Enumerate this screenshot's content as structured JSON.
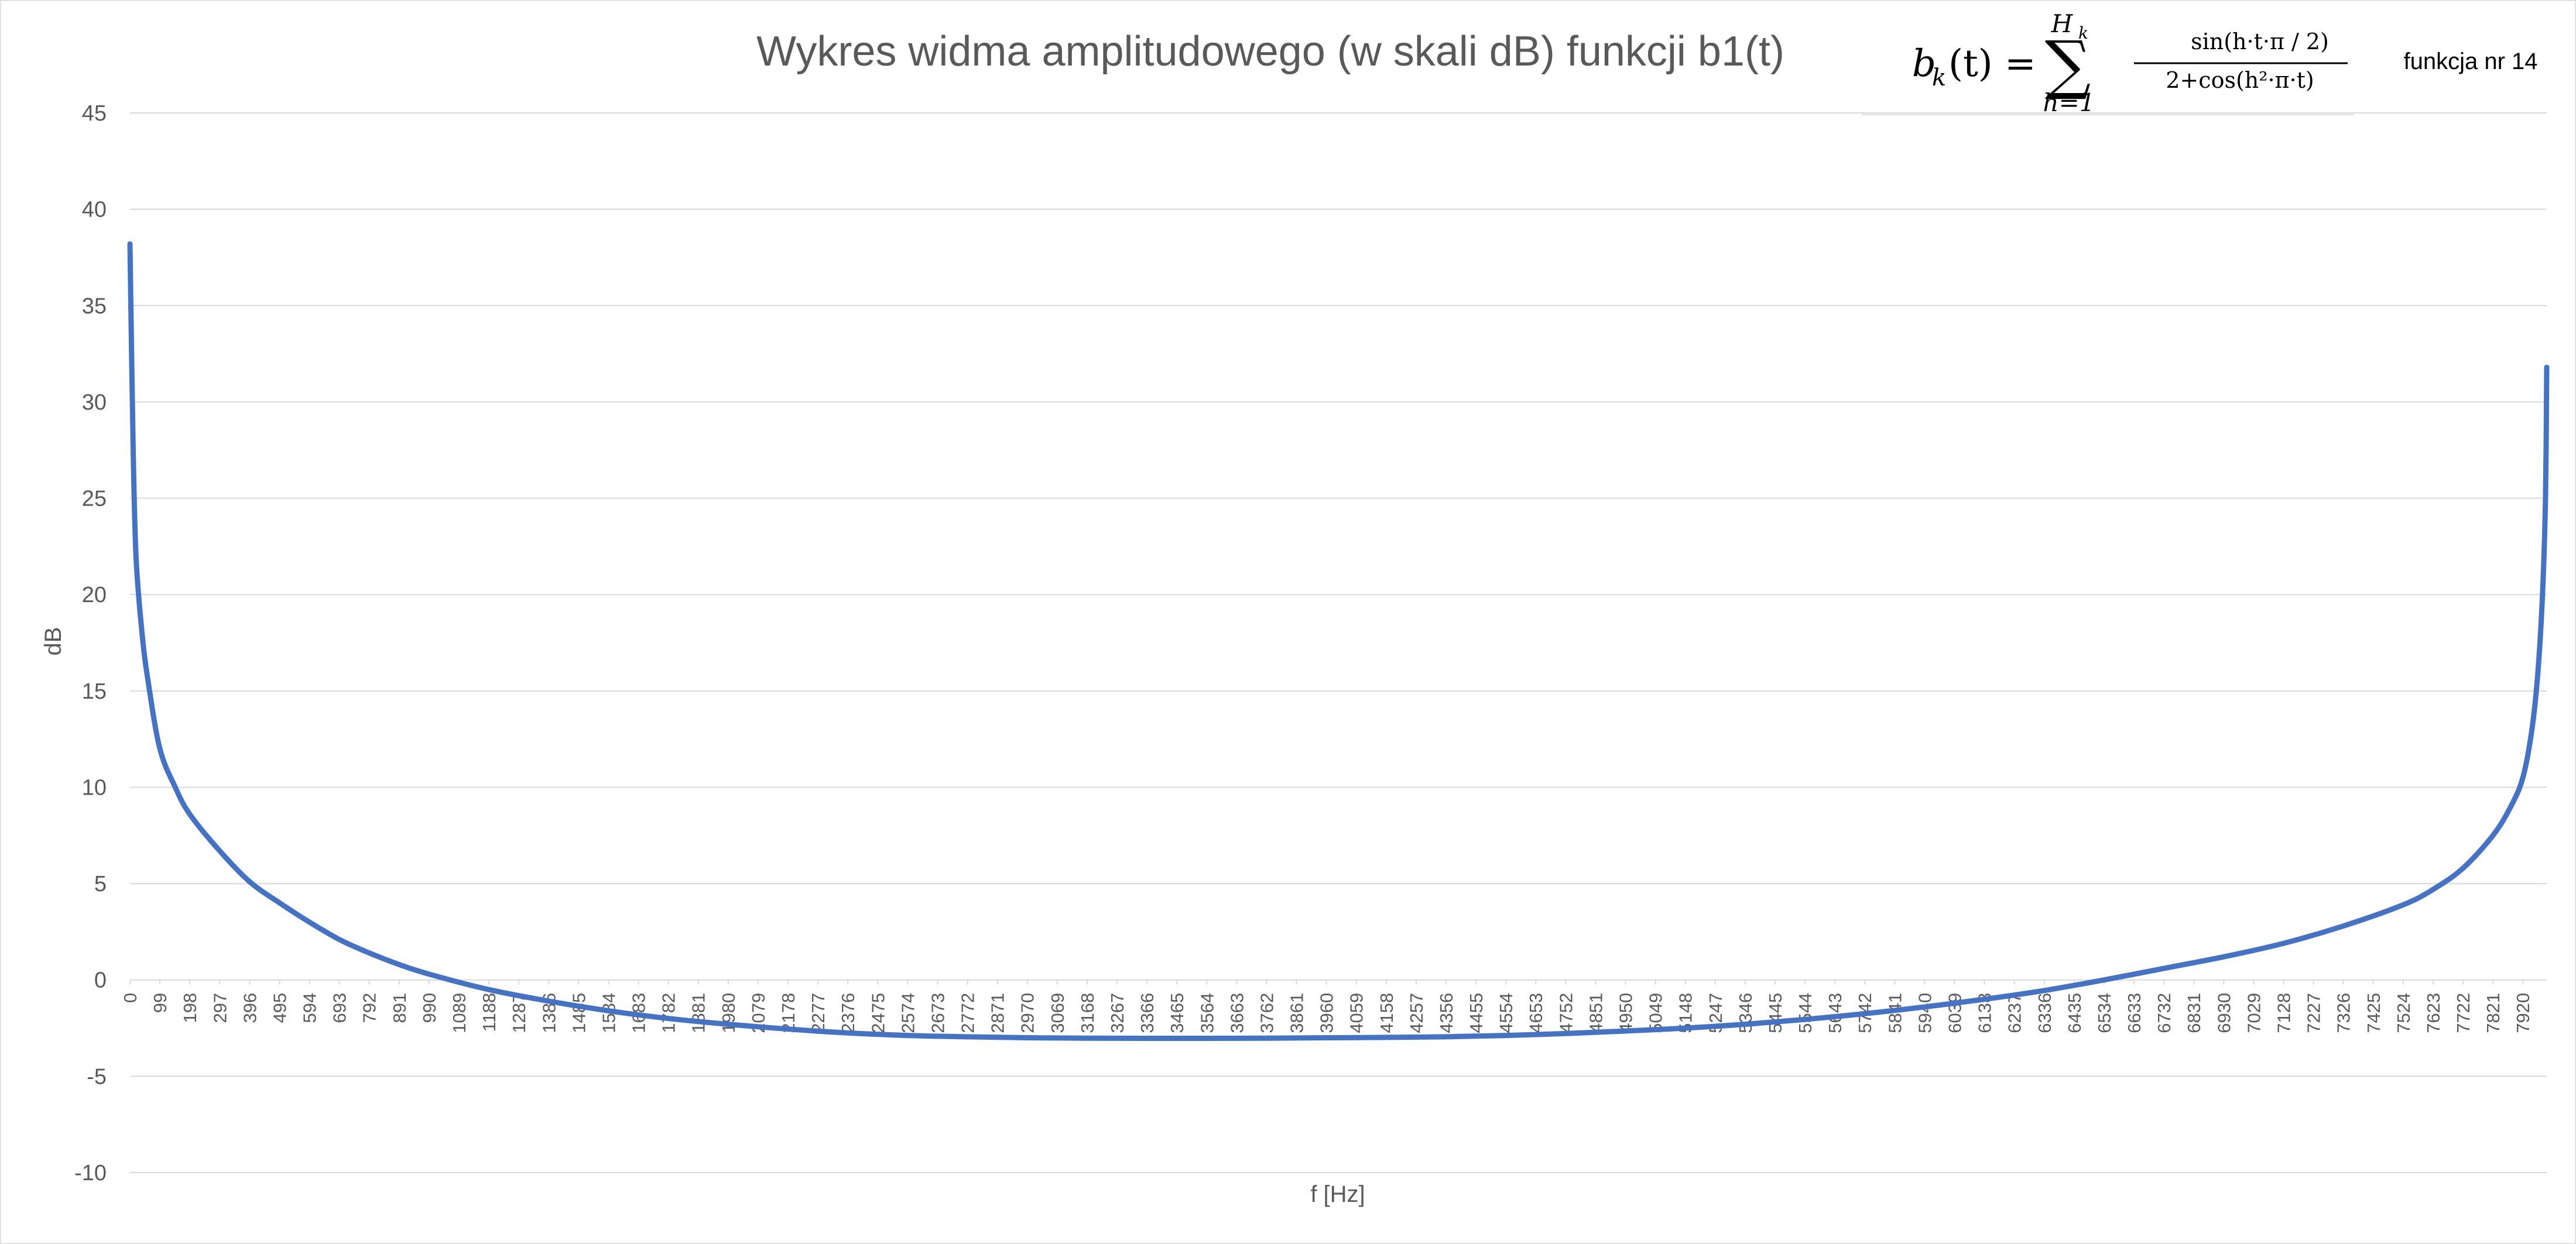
{
  "chart_data": {
    "type": "line",
    "title": "Wykres widma amplitudowego (w skali dB) funkcji b1(t)",
    "xlabel": "f [Hz]",
    "ylabel": "dB",
    "ylim": [
      -10,
      45
    ],
    "y_ticks": [
      -10,
      -5,
      0,
      5,
      10,
      15,
      20,
      25,
      30,
      35,
      40,
      45
    ],
    "xlim": [
      0,
      7999
    ],
    "x_tick_labels": [
      "0",
      "99",
      "198",
      "297",
      "396",
      "495",
      "594",
      "693",
      "792",
      "891",
      "990",
      "1089",
      "1188",
      "1287",
      "1386",
      "1485",
      "1584",
      "1683",
      "1782",
      "1881",
      "1980",
      "2079",
      "2178",
      "2277",
      "2376",
      "2475",
      "2574",
      "2673",
      "2772",
      "2871",
      "2970",
      "3069",
      "3168",
      "3267",
      "3366",
      "3465",
      "3564",
      "3663",
      "3762",
      "3861",
      "3960",
      "4059",
      "4158",
      "4257",
      "4356",
      "4455",
      "4554",
      "4653",
      "4752",
      "4851",
      "4950",
      "5049",
      "5148",
      "5247",
      "5346",
      "5445",
      "5544",
      "5643",
      "5742",
      "5841",
      "5940",
      "6039",
      "6138",
      "6237",
      "6336",
      "6435",
      "6534",
      "6633",
      "6732",
      "6831",
      "6930",
      "7029",
      "7128",
      "7227",
      "7326",
      "7425",
      "7524",
      "7623",
      "7722",
      "7821",
      "7920"
    ],
    "grid": true,
    "legend": "none",
    "series": [
      {
        "color": "#4472C4",
        "x": [
          0,
          10,
          20,
          40,
          60,
          99,
          150,
          198,
          297,
          396,
          495,
          594,
          693,
          792,
          891,
          990,
          1188,
          1386,
          1584,
          1782,
          1980,
          2178,
          2376,
          2574,
          2772,
          2970,
          3168,
          3366,
          3564,
          3762,
          3960,
          4000,
          4158,
          4356,
          4554,
          4752,
          4950,
          5148,
          5346,
          5544,
          5742,
          5940,
          6138,
          6336,
          6534,
          6732,
          6930,
          7128,
          7326,
          7524,
          7623,
          7722,
          7821,
          7880,
          7920,
          7950,
          7970,
          7985,
          7995,
          7999
        ],
        "y": [
          38.2,
          28,
          22,
          18,
          15.5,
          12,
          10,
          8.6,
          6.7,
          5.1,
          4.0,
          3.0,
          2.1,
          1.4,
          0.8,
          0.3,
          -0.5,
          -1.1,
          -1.6,
          -2.0,
          -2.3,
          -2.55,
          -2.75,
          -2.88,
          -2.95,
          -3.0,
          -3.02,
          -3.03,
          -3.03,
          -3.02,
          -3.0,
          -3.0,
          -2.98,
          -2.95,
          -2.88,
          -2.78,
          -2.65,
          -2.5,
          -2.3,
          -2.05,
          -1.75,
          -1.4,
          -1.0,
          -0.55,
          0.0,
          0.6,
          1.2,
          1.9,
          2.8,
          3.9,
          4.7,
          5.8,
          7.5,
          9.0,
          10.5,
          13,
          16,
          20,
          25,
          31.8
        ]
      }
    ],
    "annotations": {
      "formula_lhs": "b",
      "formula_sub": "k",
      "formula_arg": "(t) =",
      "sum_symbol": "∑",
      "sum_upper": "H",
      "sum_upper_sub": "k",
      "sum_lower": "h=1",
      "numerator": "sin(h·t·π / 2)",
      "denominator": "2+cos(h²·π·t)",
      "function_note": "funkcja nr 14"
    }
  }
}
